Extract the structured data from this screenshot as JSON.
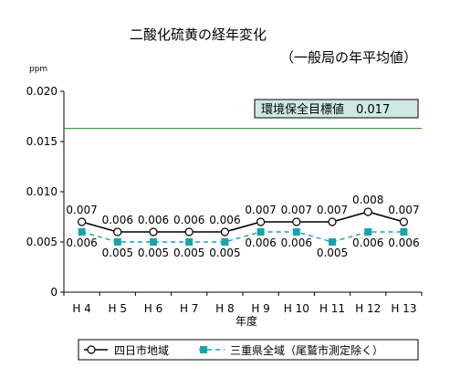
{
  "chart_data": {
    "type": "line",
    "title": "二酸化硫黄の経年変化",
    "subtitle": "（一般局の年平均値）",
    "ylabel": "ppm",
    "xlabel": "年度",
    "categories": [
      "H 4",
      "H 5",
      "H 6",
      "H 7",
      "H 8",
      "H 9",
      "H 10",
      "H 11",
      "H 12",
      "H 13"
    ],
    "ylim": [
      0,
      0.02
    ],
    "yticks": [
      "0",
      "0.005",
      "0.010",
      "0.015",
      "0.020"
    ],
    "grid": false,
    "series": [
      {
        "name": "四日市地域",
        "marker": "circle",
        "line": "solid",
        "color": "#000000",
        "values": [
          0.007,
          0.006,
          0.006,
          0.006,
          0.006,
          0.007,
          0.007,
          0.007,
          0.008,
          0.007
        ],
        "labels": [
          "0.007",
          "0.006",
          "0.006",
          "0.006",
          "0.006",
          "0.007",
          "0.007",
          "0.007",
          "0.008",
          "0.007"
        ]
      },
      {
        "name": "三重県全域（尾鷲市測定除く）",
        "marker": "square",
        "line": "dashed",
        "color": "#19a3ab",
        "values": [
          0.006,
          0.005,
          0.005,
          0.005,
          0.005,
          0.006,
          0.006,
          0.005,
          0.006,
          0.006
        ],
        "labels": [
          "0.006",
          "0.005",
          "0.005",
          "0.005",
          "0.005",
          "0.006",
          "0.006",
          "0.005",
          "0.006",
          "0.006"
        ]
      }
    ],
    "reference_line": {
      "label": "環境保全目標値　0.017",
      "color": "#2e8b3a",
      "label_bg": "#cfe8e6"
    },
    "legend": {
      "position": "bottom"
    }
  }
}
